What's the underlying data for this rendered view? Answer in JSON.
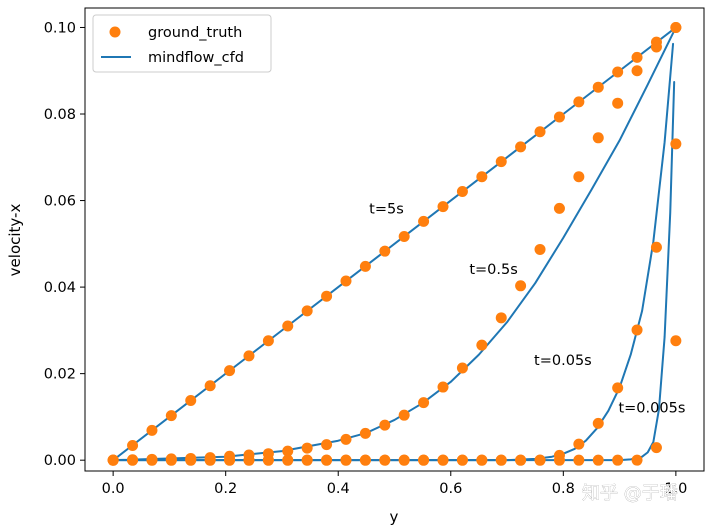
{
  "chart_data": {
    "type": "line",
    "title": "",
    "xlabel": "y",
    "ylabel": "velocity-x",
    "xlim": [
      -0.05,
      1.05
    ],
    "ylim": [
      -0.0025,
      0.1045
    ],
    "xticks": [
      0.0,
      0.2,
      0.4,
      0.6,
      0.8,
      1.0
    ],
    "xtick_labels": [
      "0.0",
      "0.2",
      "0.4",
      "0.6",
      "0.8",
      "1.0"
    ],
    "yticks": [
      0.0,
      0.02,
      0.04,
      0.06,
      0.08,
      0.1
    ],
    "ytick_labels": [
      "0.00",
      "0.02",
      "0.04",
      "0.06",
      "0.08",
      "0.10"
    ],
    "grid": false,
    "legend": {
      "placement": "top-left",
      "entries": [
        {
          "label": "ground_truth",
          "marker": "circle",
          "color": "#ff7f0e"
        },
        {
          "label": "mindflow_cfd",
          "marker": "line",
          "color": "#1f77b4"
        }
      ]
    },
    "annotations": [
      {
        "text": "t=5s",
        "x": 0.455,
        "y": 0.057
      },
      {
        "text": "t=0.5s",
        "x": 0.633,
        "y": 0.043
      },
      {
        "text": "t=0.05s",
        "x": 0.748,
        "y": 0.022
      },
      {
        "text": "t=0.005s",
        "x": 0.898,
        "y": 0.011
      }
    ],
    "x": [
      0.0,
      0.0345,
      0.069,
      0.1034,
      0.1379,
      0.1724,
      0.2069,
      0.2414,
      0.2759,
      0.3103,
      0.3448,
      0.3793,
      0.4138,
      0.4483,
      0.4828,
      0.5172,
      0.5517,
      0.5862,
      0.6207,
      0.6552,
      0.6897,
      0.7241,
      0.7586,
      0.7931,
      0.8276,
      0.8621,
      0.8966,
      0.931,
      0.9655,
      1.0
    ],
    "series": [
      {
        "name": "ground_truth",
        "kind": "scatter",
        "color": "#ff7f0e",
        "groups": [
          {
            "t": "t=5s",
            "y": [
              0.0,
              0.0034,
              0.0069,
              0.0103,
              0.0138,
              0.0172,
              0.0207,
              0.0241,
              0.0276,
              0.031,
              0.0345,
              0.0379,
              0.0414,
              0.0448,
              0.0483,
              0.0517,
              0.0552,
              0.0586,
              0.0621,
              0.0655,
              0.069,
              0.0724,
              0.0759,
              0.0793,
              0.0828,
              0.0862,
              0.0897,
              0.0931,
              0.0966,
              0.1
            ]
          },
          {
            "t": "t=0.5s",
            "y": [
              0.0,
              0.0001,
              0.0002,
              0.0003,
              0.0004,
              0.0006,
              0.0009,
              0.0012,
              0.0015,
              0.0021,
              0.0028,
              0.0036,
              0.0048,
              0.0062,
              0.0081,
              0.0104,
              0.0133,
              0.0169,
              0.0213,
              0.0266,
              0.0329,
              0.0403,
              0.0487,
              0.0582,
              0.0655,
              0.0745,
              0.0825,
              0.09,
              0.0955,
              0.1
            ]
          },
          {
            "t": "t=0.05s",
            "y": [
              0.0,
              0.0,
              0.0,
              0.0,
              0.0,
              0.0,
              0.0,
              0.0,
              0.0,
              0.0,
              0.0,
              0.0,
              0.0,
              0.0,
              0.0,
              0.0,
              0.0,
              0.0,
              0.0,
              0.0,
              0.0,
              0.0,
              0.0,
              0.0011,
              0.0037,
              0.0085,
              0.0167,
              0.0301,
              0.0492,
              0.0731
            ]
          },
          {
            "t": "t=0.005s",
            "y": [
              0.0,
              0.0,
              0.0,
              0.0,
              0.0,
              0.0,
              0.0,
              0.0,
              0.0,
              0.0,
              0.0,
              0.0,
              0.0,
              0.0,
              0.0,
              0.0,
              0.0,
              0.0,
              0.0,
              0.0,
              0.0,
              0.0,
              0.0,
              0.0,
              0.0,
              0.0,
              0.0,
              0.0,
              0.0029,
              0.0276
            ]
          }
        ]
      },
      {
        "name": "mindflow_cfd",
        "kind": "line",
        "color": "#1f77b4",
        "curves": [
          {
            "t": "t=5s",
            "x": [
              0.0,
              0.1,
              0.2,
              0.3,
              0.4,
              0.5,
              0.6,
              0.7,
              0.8,
              0.9,
              1.0
            ],
            "y": [
              0.0,
              0.01,
              0.02,
              0.03,
              0.04,
              0.05,
              0.06,
              0.07,
              0.08,
              0.09,
              0.1
            ]
          },
          {
            "t": "t=0.5s",
            "x": [
              0.0,
              0.2,
              0.3,
              0.4,
              0.45,
              0.5,
              0.55,
              0.6,
              0.65,
              0.7,
              0.75,
              0.8,
              0.85,
              0.9,
              0.95,
              1.0
            ],
            "y": [
              0.0,
              0.0008,
              0.0021,
              0.0045,
              0.0063,
              0.0093,
              0.0132,
              0.0181,
              0.0244,
              0.0319,
              0.0409,
              0.0514,
              0.0625,
              0.0739,
              0.0868,
              0.1
            ]
          },
          {
            "t": "t=0.05s",
            "x": [
              0.0,
              0.7,
              0.75,
              0.78,
              0.8,
              0.82,
              0.84,
              0.86,
              0.88,
              0.9,
              0.92,
              0.94,
              0.96,
              0.98,
              0.995
            ],
            "y": [
              0.0,
              0.0,
              0.0003,
              0.0008,
              0.0015,
              0.0026,
              0.0045,
              0.0074,
              0.0114,
              0.0168,
              0.0245,
              0.0345,
              0.0505,
              0.0735,
              0.0962
            ]
          },
          {
            "t": "t=0.005s",
            "x": [
              0.0,
              0.9,
              0.92,
              0.94,
              0.95,
              0.96,
              0.97,
              0.98,
              0.99,
              0.997
            ],
            "y": [
              0.0,
              0.0,
              0.0002,
              0.0008,
              0.0018,
              0.0042,
              0.0118,
              0.0285,
              0.0572,
              0.0874
            ]
          }
        ]
      }
    ]
  },
  "watermark": {
    "text": "知乎 @于璠"
  }
}
